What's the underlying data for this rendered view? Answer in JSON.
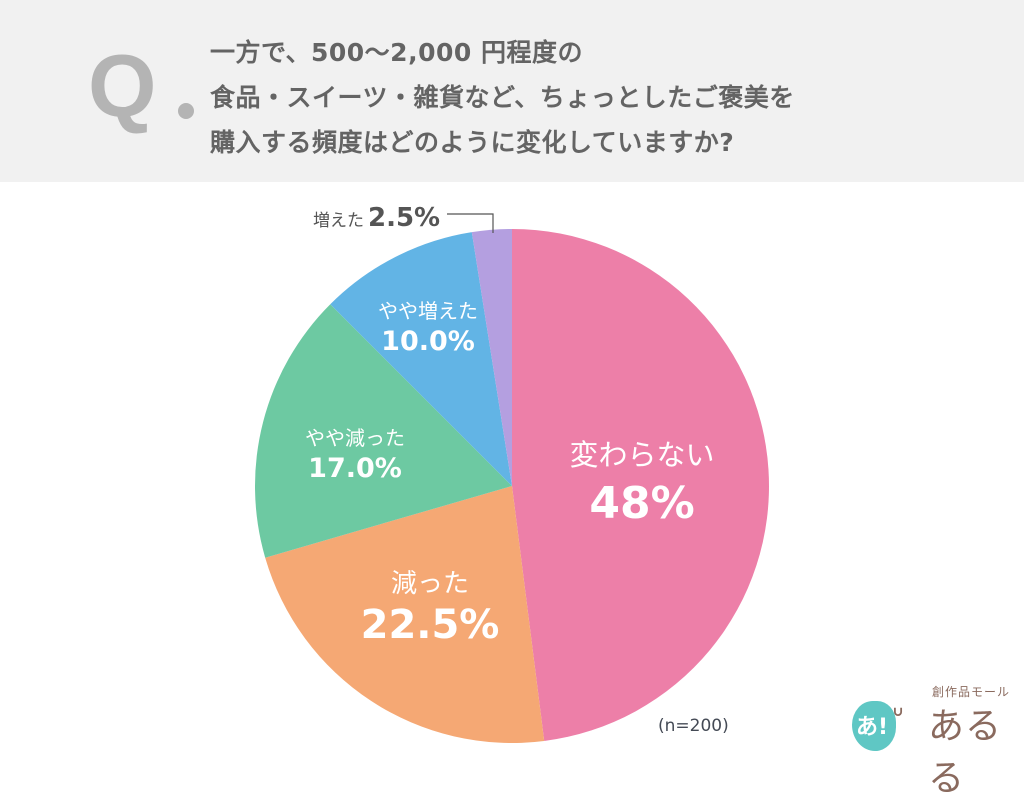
{
  "header": {
    "q_mark": "Q",
    "question_lines": [
      "一方で、500～2,000 円程度の",
      "食品・スイーツ・雑貨など、ちょっとしたご褒美を",
      "購入する頻度はどのように変化していますか?"
    ]
  },
  "chart_data": {
    "type": "pie",
    "title": "一方で、500～2,000 円程度の食品・スイーツ・雑貨など、ちょっとしたご褒美を購入する頻度はどのように変化していますか?",
    "categories": [
      "変わらない",
      "減った",
      "やや減った",
      "やや増えた",
      "増えた"
    ],
    "values": [
      48,
      22.5,
      17.0,
      10.0,
      2.5
    ],
    "labels": [
      "48%",
      "22.5%",
      "17.0%",
      "10.0%",
      "2.5%"
    ],
    "colors": [
      "#ed7fa8",
      "#f5a874",
      "#6dc9a2",
      "#62b4e5",
      "#b49fe0"
    ],
    "start_angle": "12 o'clock, clockwise",
    "n": 200
  },
  "labels": {
    "unchanged": {
      "name": "変わらない",
      "pct": "48%"
    },
    "decreased": {
      "name": "減った",
      "pct": "22.5%"
    },
    "slightly_decreased": {
      "name": "やや減った",
      "pct": "17.0%"
    },
    "slightly_increased": {
      "name": "やや増えた",
      "pct": "10.0%"
    },
    "increased": {
      "name": "増えた",
      "pct": "2.5%"
    }
  },
  "sample": "(n=200)",
  "logo": {
    "badge": "あ!",
    "tagline": "創作品モール",
    "name": "あるる"
  }
}
